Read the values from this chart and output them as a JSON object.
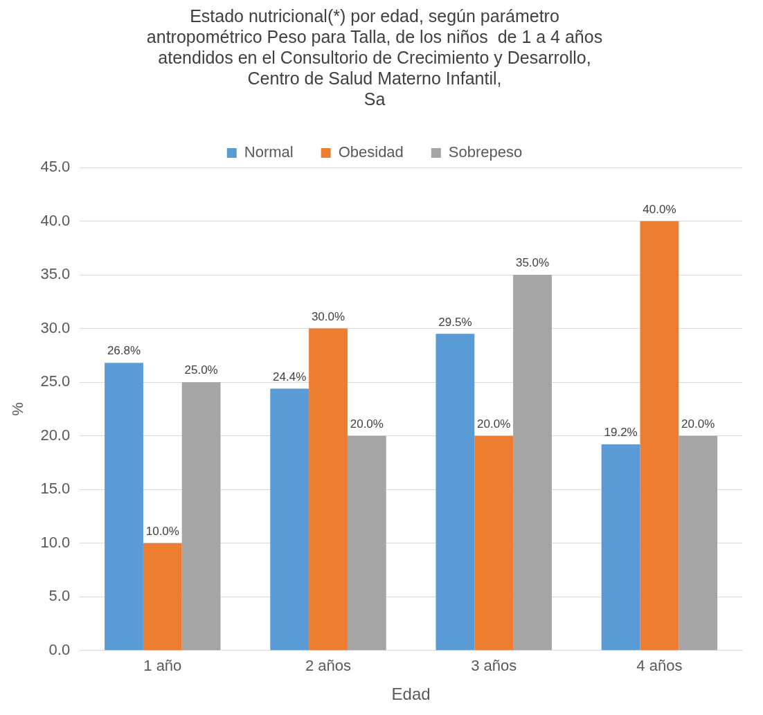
{
  "chart_data": {
    "type": "bar",
    "title": "Estado nutricional(*) por edad, según parámetro\nantropométrico Peso para Talla, de los niños  de 1 a 4 años\natendidos en el Consultorio de Crecimiento y Desarrollo,\nCentro de Salud Materno Infantil,\nSa",
    "xlabel": "Edad",
    "ylabel": "%",
    "categories": [
      "1 año",
      "2 años",
      "3 años",
      "4 años"
    ],
    "series": [
      {
        "name": "Normal",
        "color": "#5b9bd5",
        "values": [
          26.8,
          24.4,
          29.5,
          19.2
        ],
        "value_labels": [
          "26.8%",
          "24.4%",
          "29.5%",
          "19.2%"
        ]
      },
      {
        "name": "Obesidad",
        "color": "#ed7d31",
        "values": [
          10.0,
          30.0,
          20.0,
          40.0
        ],
        "value_labels": [
          "10.0%",
          "30.0%",
          "20.0%",
          "40.0%"
        ]
      },
      {
        "name": "Sobrepeso",
        "color": "#a5a5a5",
        "values": [
          25.0,
          20.0,
          35.0,
          20.0
        ],
        "value_labels": [
          "25.0%",
          "20.0%",
          "35.0%",
          "20.0%"
        ]
      }
    ],
    "ylim": [
      0,
      45
    ],
    "yticks": [
      {
        "value": 0,
        "label": "0.0"
      },
      {
        "value": 5,
        "label": "5.0"
      },
      {
        "value": 10,
        "label": "10.0"
      },
      {
        "value": 15,
        "label": "15.0"
      },
      {
        "value": 20,
        "label": "20.0"
      },
      {
        "value": 25,
        "label": "25.0"
      },
      {
        "value": 30,
        "label": "30.0"
      },
      {
        "value": 35,
        "label": "35.0"
      },
      {
        "value": 40,
        "label": "40.0"
      },
      {
        "value": 45,
        "label": "45.0"
      }
    ],
    "grid": "y",
    "legend": "top"
  }
}
